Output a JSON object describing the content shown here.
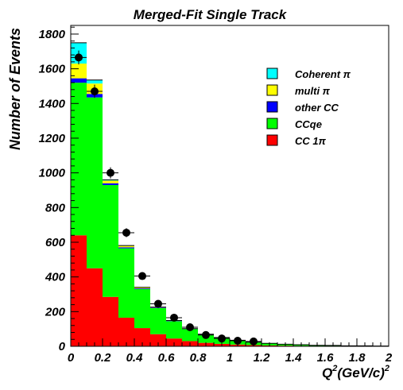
{
  "chart_data": {
    "type": "bar",
    "stacked": true,
    "title": "Merged-Fit Single Track",
    "ylabel": "Number of Events",
    "xlabel": "Q",
    "xlabel_sup": "2",
    "xlabel_mid": "(GeV/c)",
    "xlabel_sup2": "2",
    "xlim": [
      0,
      2
    ],
    "ylim": [
      0,
      1850
    ],
    "x_ticks": [
      "0",
      "0.2",
      "0.4",
      "0.6",
      "0.8",
      "1",
      "1.2",
      "1.4",
      "1.6",
      "1.8",
      "2"
    ],
    "y_ticks": [
      "0",
      "200",
      "400",
      "600",
      "800",
      "1000",
      "1200",
      "1400",
      "1600",
      "1800"
    ],
    "bin_width": 0.1,
    "bin_starts": [
      0.0,
      0.1,
      0.2,
      0.3,
      0.4,
      0.5,
      0.6,
      0.7,
      0.8,
      0.9,
      1.0,
      1.1,
      1.2,
      1.3,
      1.4,
      1.5,
      1.6,
      1.7,
      1.8,
      1.9
    ],
    "legend_position": "top-right",
    "series": [
      {
        "name": "CC 1π",
        "color": "#ff0000",
        "values": [
          640,
          450,
          285,
          165,
          105,
          70,
          45,
          30,
          20,
          14,
          10,
          7,
          5,
          4,
          3,
          2,
          2,
          1,
          1,
          1
        ]
      },
      {
        "name": "CCqe",
        "color": "#00ff00",
        "values": [
          880,
          985,
          645,
          400,
          225,
          150,
          100,
          70,
          48,
          35,
          24,
          17,
          12,
          8,
          6,
          4,
          3,
          2,
          2,
          1
        ]
      },
      {
        "name": "other CC",
        "color": "#0000ff",
        "values": [
          25,
          20,
          10,
          6,
          4,
          3,
          2,
          1,
          1,
          1,
          1,
          0,
          0,
          0,
          0,
          0,
          0,
          0,
          0,
          0
        ]
      },
      {
        "name": "multi π",
        "color": "#ffff00",
        "values": [
          85,
          60,
          15,
          8,
          5,
          3,
          2,
          1,
          1,
          1,
          0,
          0,
          0,
          0,
          0,
          0,
          0,
          0,
          0,
          0
        ]
      },
      {
        "name": "Coherent π",
        "color": "#00ffff",
        "values": [
          120,
          20,
          5,
          2,
          1,
          0,
          0,
          0,
          0,
          0,
          0,
          0,
          0,
          0,
          0,
          0,
          0,
          0,
          0,
          0
        ]
      }
    ],
    "legend_order": [
      "Coherent π",
      "multi π",
      "other CC",
      "CCqe",
      "CC 1π"
    ],
    "data_points": {
      "x": [
        0.05,
        0.15,
        0.25,
        0.35,
        0.45,
        0.55,
        0.65,
        0.75,
        0.85,
        0.95,
        1.05,
        1.15
      ],
      "y": [
        1665,
        1470,
        1000,
        655,
        405,
        245,
        165,
        110,
        65,
        45,
        32,
        28
      ],
      "yerr": [
        40,
        38,
        32,
        26,
        20,
        16,
        13,
        10,
        8,
        7,
        6,
        5
      ]
    }
  }
}
